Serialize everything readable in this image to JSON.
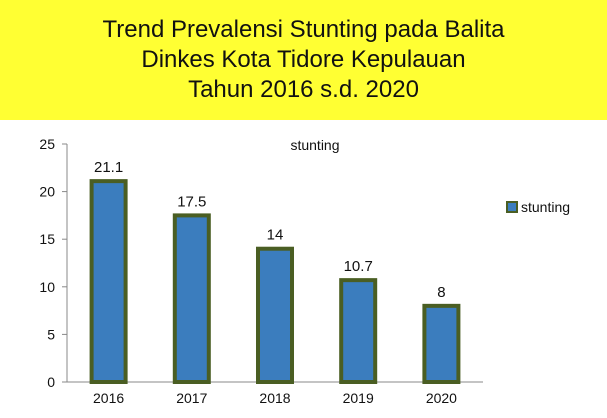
{
  "header": {
    "title_lines": [
      "Trend Prevalensi Stunting pada Balita",
      "Dinkes Kota Tidore Kepulauan",
      "Tahun 2016 s.d. 2020"
    ],
    "background_color": "#ffff33"
  },
  "chart_data": {
    "type": "bar",
    "title": "stunting",
    "categories": [
      "2016",
      "2017",
      "2018",
      "2019",
      "2020"
    ],
    "series": [
      {
        "name": "stunting",
        "values": [
          21.1,
          17.5,
          14,
          10.7,
          8
        ]
      }
    ],
    "data_labels": [
      "21.1",
      "17.5",
      "14",
      "10.7",
      "8"
    ],
    "xlabel": "",
    "ylabel": "",
    "ylim": [
      0,
      25
    ],
    "yticks": [
      0,
      5,
      10,
      15,
      20,
      25
    ],
    "grid": false,
    "legend_position": "right",
    "colors": {
      "bar_fill": "#3b7dbe",
      "bar_border": "#4a5e23",
      "axis": "#888888"
    }
  }
}
